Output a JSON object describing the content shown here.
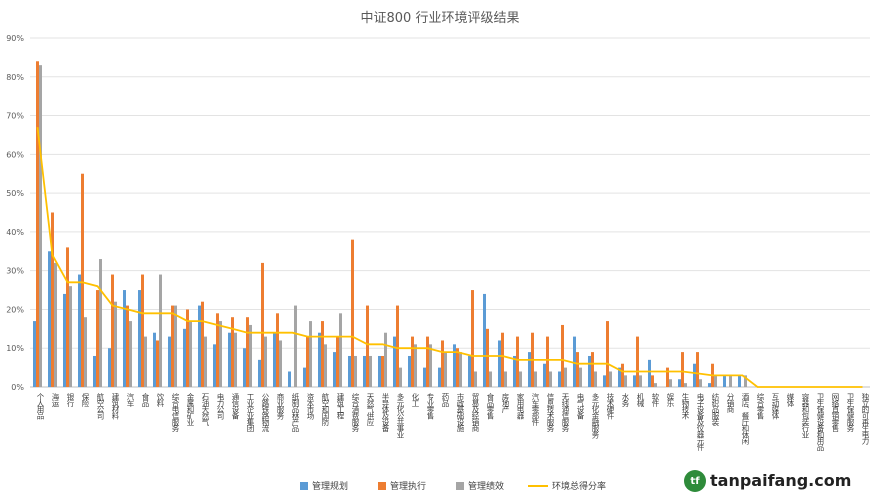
{
  "chart_data": {
    "type": "bar+line",
    "title": "中证800 行业环境评级结果",
    "ylim": [
      0,
      90
    ],
    "yticks": [
      "0%",
      "10%",
      "20%",
      "30%",
      "40%",
      "50%",
      "60%",
      "70%",
      "80%",
      "90%"
    ],
    "grid": true,
    "legend_position": "bottom",
    "categories": [
      "个人用品",
      "海运",
      "银行",
      "保险",
      "航空公司",
      "建筑材料",
      "汽车",
      "食品",
      "饮料",
      "综合电信服务",
      "金属和矿业",
      "石油天然气",
      "电力公司",
      "通信设备",
      "工业企业集团",
      "公路铁路物流",
      "商业服务",
      "纸制品林产品",
      "资本市场",
      "航空和国防",
      "建筑工程",
      "综合消费服务",
      "天然气供应",
      "半导体及设备",
      "多元化公共事业",
      "化工",
      "专业零售",
      "药品",
      "市政基础设施",
      "贸易及经销商",
      "食品零售",
      "房地产",
      "家用电器",
      "汽车零部件",
      "信息技术服务",
      "无线通信服务",
      "电气设备",
      "多元化金融服务",
      "技术硬件",
      "水务",
      "机械",
      "软件",
      "娱乐",
      "生物技术",
      "电子设备及仪器元件",
      "纺织品服装",
      "分销商",
      "酒店、餐厅和休闲",
      "综合零售",
      "互动媒体",
      "媒体",
      "容器和包装行业",
      "卫生保健设备和用品",
      "网络直销零售",
      "卫生保健服务",
      "独立的可再生电力"
    ],
    "series": [
      {
        "name": "管理规划",
        "color": "#5b9bd5",
        "values": [
          17,
          35,
          24,
          29,
          8,
          10,
          25,
          25,
          14,
          13,
          15,
          21,
          11,
          14,
          10,
          7,
          14,
          4,
          5,
          14,
          9,
          8,
          8,
          8,
          13,
          8,
          5,
          5,
          11,
          8,
          24,
          12,
          8,
          9,
          6,
          4,
          13,
          8,
          3,
          5,
          3,
          7,
          0,
          2,
          6,
          1,
          3,
          3,
          0,
          0,
          0,
          0,
          0,
          0,
          0,
          0
        ]
      },
      {
        "name": "管理执行",
        "color": "#ed7d31",
        "values": [
          84,
          45,
          36,
          55,
          25,
          29,
          21,
          29,
          12,
          21,
          20,
          22,
          19,
          18,
          18,
          32,
          19,
          0,
          13,
          17,
          13,
          38,
          21,
          8,
          21,
          13,
          13,
          12,
          10,
          25,
          15,
          14,
          13,
          14,
          13,
          16,
          9,
          9,
          17,
          6,
          13,
          3,
          5,
          9,
          9,
          6,
          0,
          0,
          0,
          0,
          0,
          0,
          0,
          0,
          0,
          0
        ]
      },
      {
        "name": "管理绩效",
        "color": "#a5a5a5",
        "values": [
          83,
          32,
          26,
          18,
          33,
          22,
          17,
          13,
          29,
          21,
          17,
          13,
          17,
          14,
          16,
          13,
          12,
          21,
          17,
          11,
          19,
          8,
          8,
          14,
          5,
          11,
          11,
          9,
          9,
          4,
          4,
          4,
          4,
          4,
          4,
          5,
          5,
          4,
          4,
          3,
          3,
          1,
          2,
          1,
          2,
          3,
          3,
          3,
          0,
          0,
          0,
          0,
          0,
          0,
          0,
          0
        ]
      },
      {
        "name": "环境总得分率",
        "color": "#ffc000",
        "values": [
          67,
          34,
          27,
          27,
          26,
          21,
          20,
          19,
          19,
          19,
          17,
          17,
          16,
          15,
          14,
          14,
          14,
          14,
          13,
          13,
          13,
          13,
          11,
          11,
          10,
          10,
          10,
          9,
          9,
          8,
          8,
          8,
          7,
          7,
          7,
          7,
          6,
          6,
          6,
          4,
          4,
          4,
          4,
          4,
          3.5,
          3,
          3,
          3,
          0,
          0,
          0,
          0,
          0,
          0,
          0,
          0
        ]
      }
    ]
  },
  "watermark": {
    "logo_letter": "tf",
    "text": "tanpaifang.com"
  }
}
